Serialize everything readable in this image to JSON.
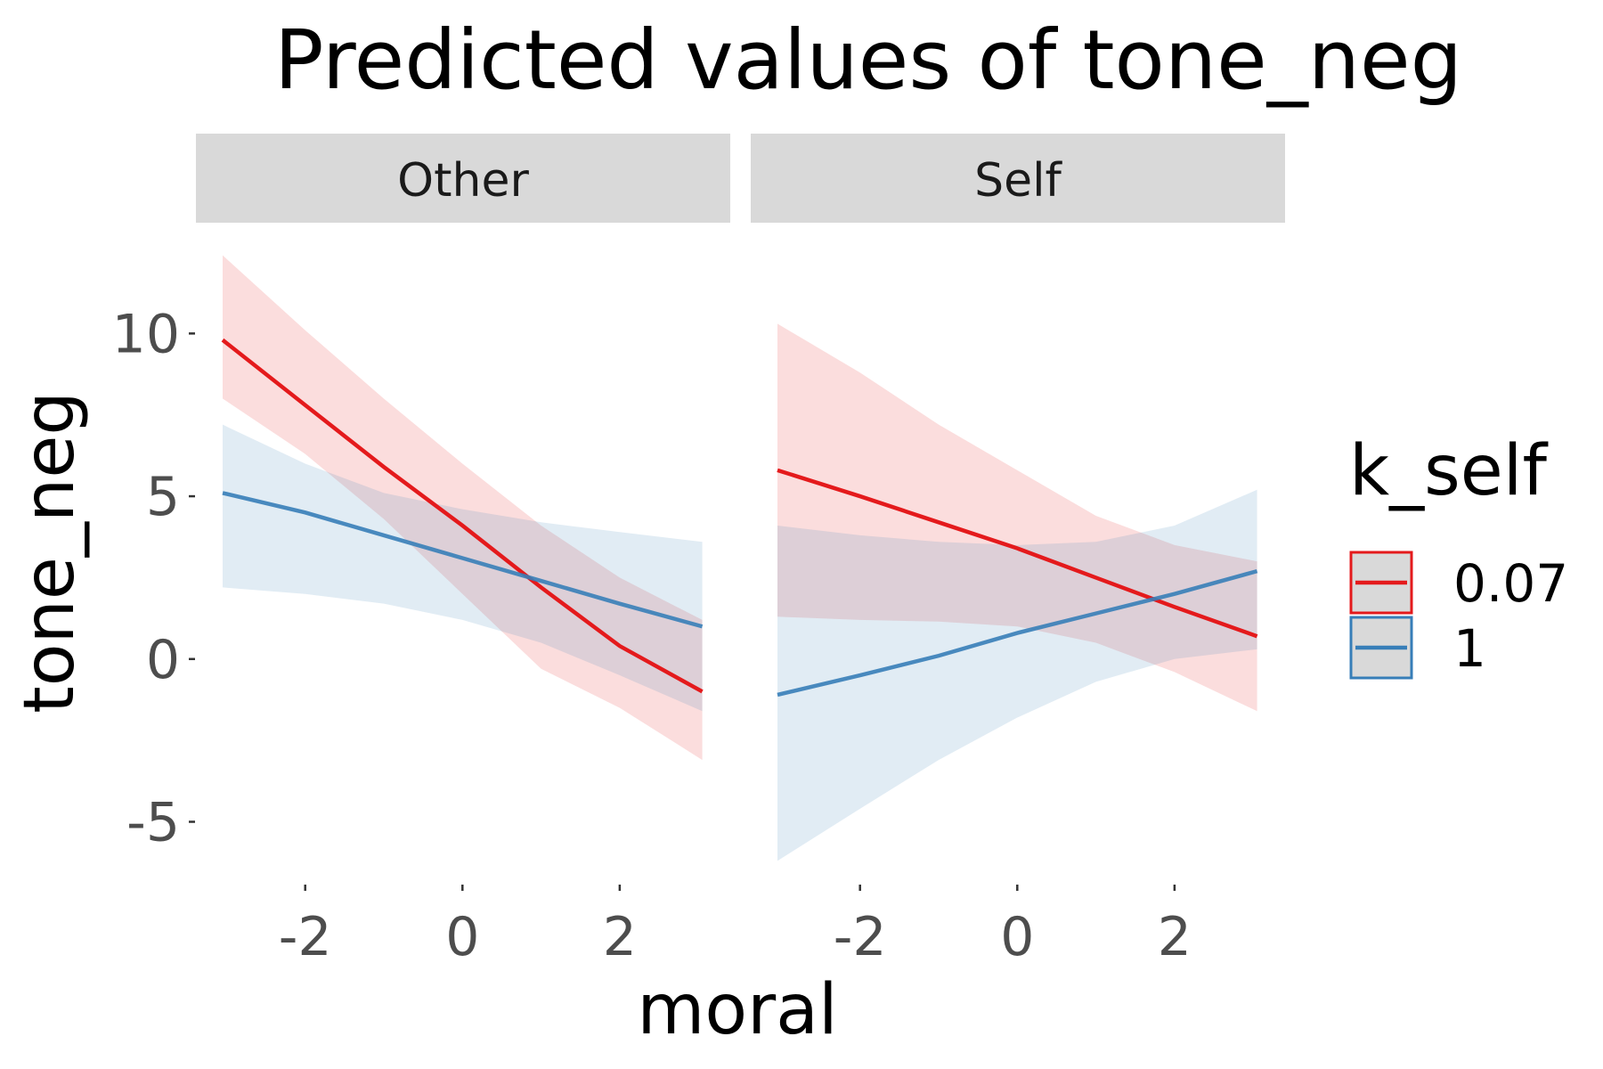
{
  "chart_data": {
    "type": "line",
    "title": "Predicted values of tone_neg",
    "xlabel": "moral",
    "ylabel": "tone_neg",
    "xlim": [
      -3.05,
      3.1
    ],
    "ylim": [
      -6.3,
      12.5
    ],
    "x_ticks": [
      -2,
      0,
      2
    ],
    "y_ticks": [
      -5,
      0,
      5,
      10
    ],
    "x_tick_labels": [
      "-2",
      "0",
      "2"
    ],
    "y_tick_labels": [
      "-5",
      "0",
      "5",
      "10"
    ],
    "grid": false,
    "legend_position": "right",
    "legend_title": "k_self",
    "legend": [
      {
        "label": "0.07",
        "color": "#e41a1c"
      },
      {
        "label": "1",
        "color": "#377eb8"
      }
    ],
    "panels": [
      {
        "name": "Other",
        "series": [
          {
            "name": "0.07",
            "color": "#e41a1c",
            "x": [
              -3.05,
              -2,
              -1,
              0,
              1,
              2,
              3.05
            ],
            "y": [
              9.8,
              7.8,
              5.9,
              4.1,
              2.2,
              0.4,
              -1.0
            ],
            "ci_low": [
              8.0,
              6.3,
              4.3,
              2.0,
              -0.3,
              -1.5,
              -3.1
            ],
            "ci_high": [
              12.4,
              10.1,
              8.0,
              6.0,
              4.1,
              2.5,
              1.2
            ]
          },
          {
            "name": "1",
            "color": "#377eb8",
            "x": [
              -3.05,
              -2,
              -1,
              0,
              1,
              2,
              3.05
            ],
            "y": [
              5.1,
              4.5,
              3.8,
              3.1,
              2.4,
              1.7,
              1.0
            ],
            "ci_low": [
              2.2,
              2.0,
              1.7,
              1.2,
              0.5,
              -0.5,
              -1.6
            ],
            "ci_high": [
              7.2,
              6.0,
              5.1,
              4.6,
              4.2,
              3.9,
              3.6
            ]
          }
        ]
      },
      {
        "name": "Self",
        "series": [
          {
            "name": "0.07",
            "color": "#e41a1c",
            "x": [
              -3.05,
              -2,
              -1,
              0,
              1,
              2,
              3.05
            ],
            "y": [
              5.8,
              5.0,
              4.2,
              3.4,
              2.5,
              1.6,
              0.7
            ],
            "ci_low": [
              1.3,
              1.2,
              1.15,
              1.0,
              0.5,
              -0.4,
              -1.6
            ],
            "ci_high": [
              10.3,
              8.8,
              7.2,
              5.8,
              4.4,
              3.5,
              3.0
            ]
          },
          {
            "name": "1",
            "color": "#377eb8",
            "x": [
              -3.05,
              -2,
              -1,
              0,
              1,
              2,
              3.05
            ],
            "y": [
              -1.1,
              -0.5,
              0.1,
              0.8,
              1.4,
              2.0,
              2.7
            ],
            "ci_low": [
              -6.2,
              -4.6,
              -3.1,
              -1.8,
              -0.7,
              0.0,
              0.3
            ],
            "ci_high": [
              4.1,
              3.8,
              3.6,
              3.5,
              3.6,
              4.1,
              5.2
            ]
          }
        ]
      }
    ]
  }
}
